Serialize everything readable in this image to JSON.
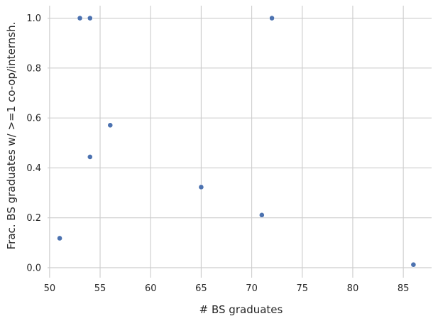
{
  "chart_data": {
    "type": "scatter",
    "title": "",
    "xlabel": "# BS graduates",
    "ylabel": "Frac. BS graduates w/ >=1 co-op/internsh.",
    "xlim": [
      49.8,
      87.8
    ],
    "ylim": [
      -0.04,
      1.05
    ],
    "xticks": [
      50,
      55,
      60,
      65,
      70,
      75,
      80,
      85
    ],
    "yticks": [
      0.0,
      0.2,
      0.4,
      0.6,
      0.8,
      1.0
    ],
    "xtick_labels": [
      "50",
      "55",
      "60",
      "65",
      "70",
      "75",
      "80",
      "85"
    ],
    "ytick_labels": [
      "0.0",
      "0.2",
      "0.4",
      "0.6",
      "0.8",
      "1.0"
    ],
    "grid": true,
    "marker_color": "#4c72b0",
    "points": [
      {
        "x": 53,
        "y": 1.0
      },
      {
        "x": 54,
        "y": 1.0
      },
      {
        "x": 72,
        "y": 1.0
      },
      {
        "x": 56,
        "y": 0.571
      },
      {
        "x": 54,
        "y": 0.444
      },
      {
        "x": 65,
        "y": 0.323
      },
      {
        "x": 71,
        "y": 0.211
      },
      {
        "x": 51,
        "y": 0.118
      },
      {
        "x": 86,
        "y": 0.012
      }
    ]
  }
}
